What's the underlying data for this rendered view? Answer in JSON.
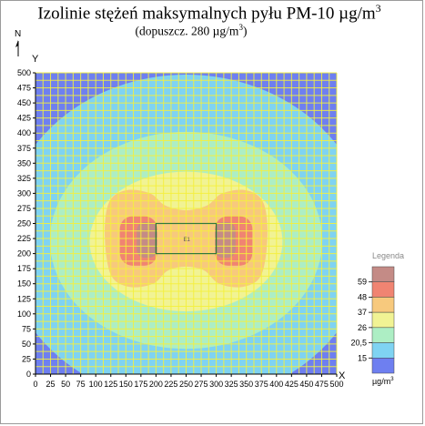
{
  "title": "Izolinie stężeń maksymalnych pyłu PM-10 µg/m",
  "title_sup": "3",
  "subtitle": "(dopuszcz. 280 µg/m",
  "subtitle_sup": "3",
  "subtitle_end": ")",
  "north_label": "N",
  "source_label": "E1",
  "chart_data": {
    "type": "heatmap",
    "xlabel": "X",
    "ylabel": "Y",
    "xlim": [
      0,
      500
    ],
    "ylim": [
      0,
      500
    ],
    "x_ticks": [
      0,
      25,
      50,
      75,
      100,
      125,
      150,
      175,
      200,
      225,
      250,
      275,
      300,
      325,
      350,
      375,
      400,
      425,
      450,
      475,
      500
    ],
    "y_ticks": [
      0,
      25,
      50,
      75,
      100,
      125,
      150,
      175,
      200,
      225,
      250,
      275,
      300,
      325,
      350,
      375,
      400,
      425,
      450,
      475,
      500
    ],
    "grid": true,
    "grid_color": "#f5f03c",
    "source_rectangle": {
      "x": [
        200,
        300
      ],
      "y": [
        200,
        250
      ]
    },
    "levels": [
      {
        "min": 0,
        "max": 15,
        "color": "#6e7ff0"
      },
      {
        "min": 15,
        "max": 20.5,
        "color": "#7fd3f2"
      },
      {
        "min": 20.5,
        "max": 26,
        "color": "#adeec4"
      },
      {
        "min": 26,
        "max": 37,
        "color": "#f1f394"
      },
      {
        "min": 37,
        "max": 48,
        "color": "#f7c97d"
      },
      {
        "min": 48,
        "max": 59,
        "color": "#f08472"
      },
      {
        "min": 59,
        "max": 70,
        "color": "#c48b86"
      }
    ],
    "legend": {
      "title": "Legenda",
      "labels": [
        "59",
        "48",
        "37",
        "26",
        "20,5",
        "15"
      ],
      "unit": "µg/m",
      "unit_sup": "3",
      "placement": "right"
    }
  }
}
